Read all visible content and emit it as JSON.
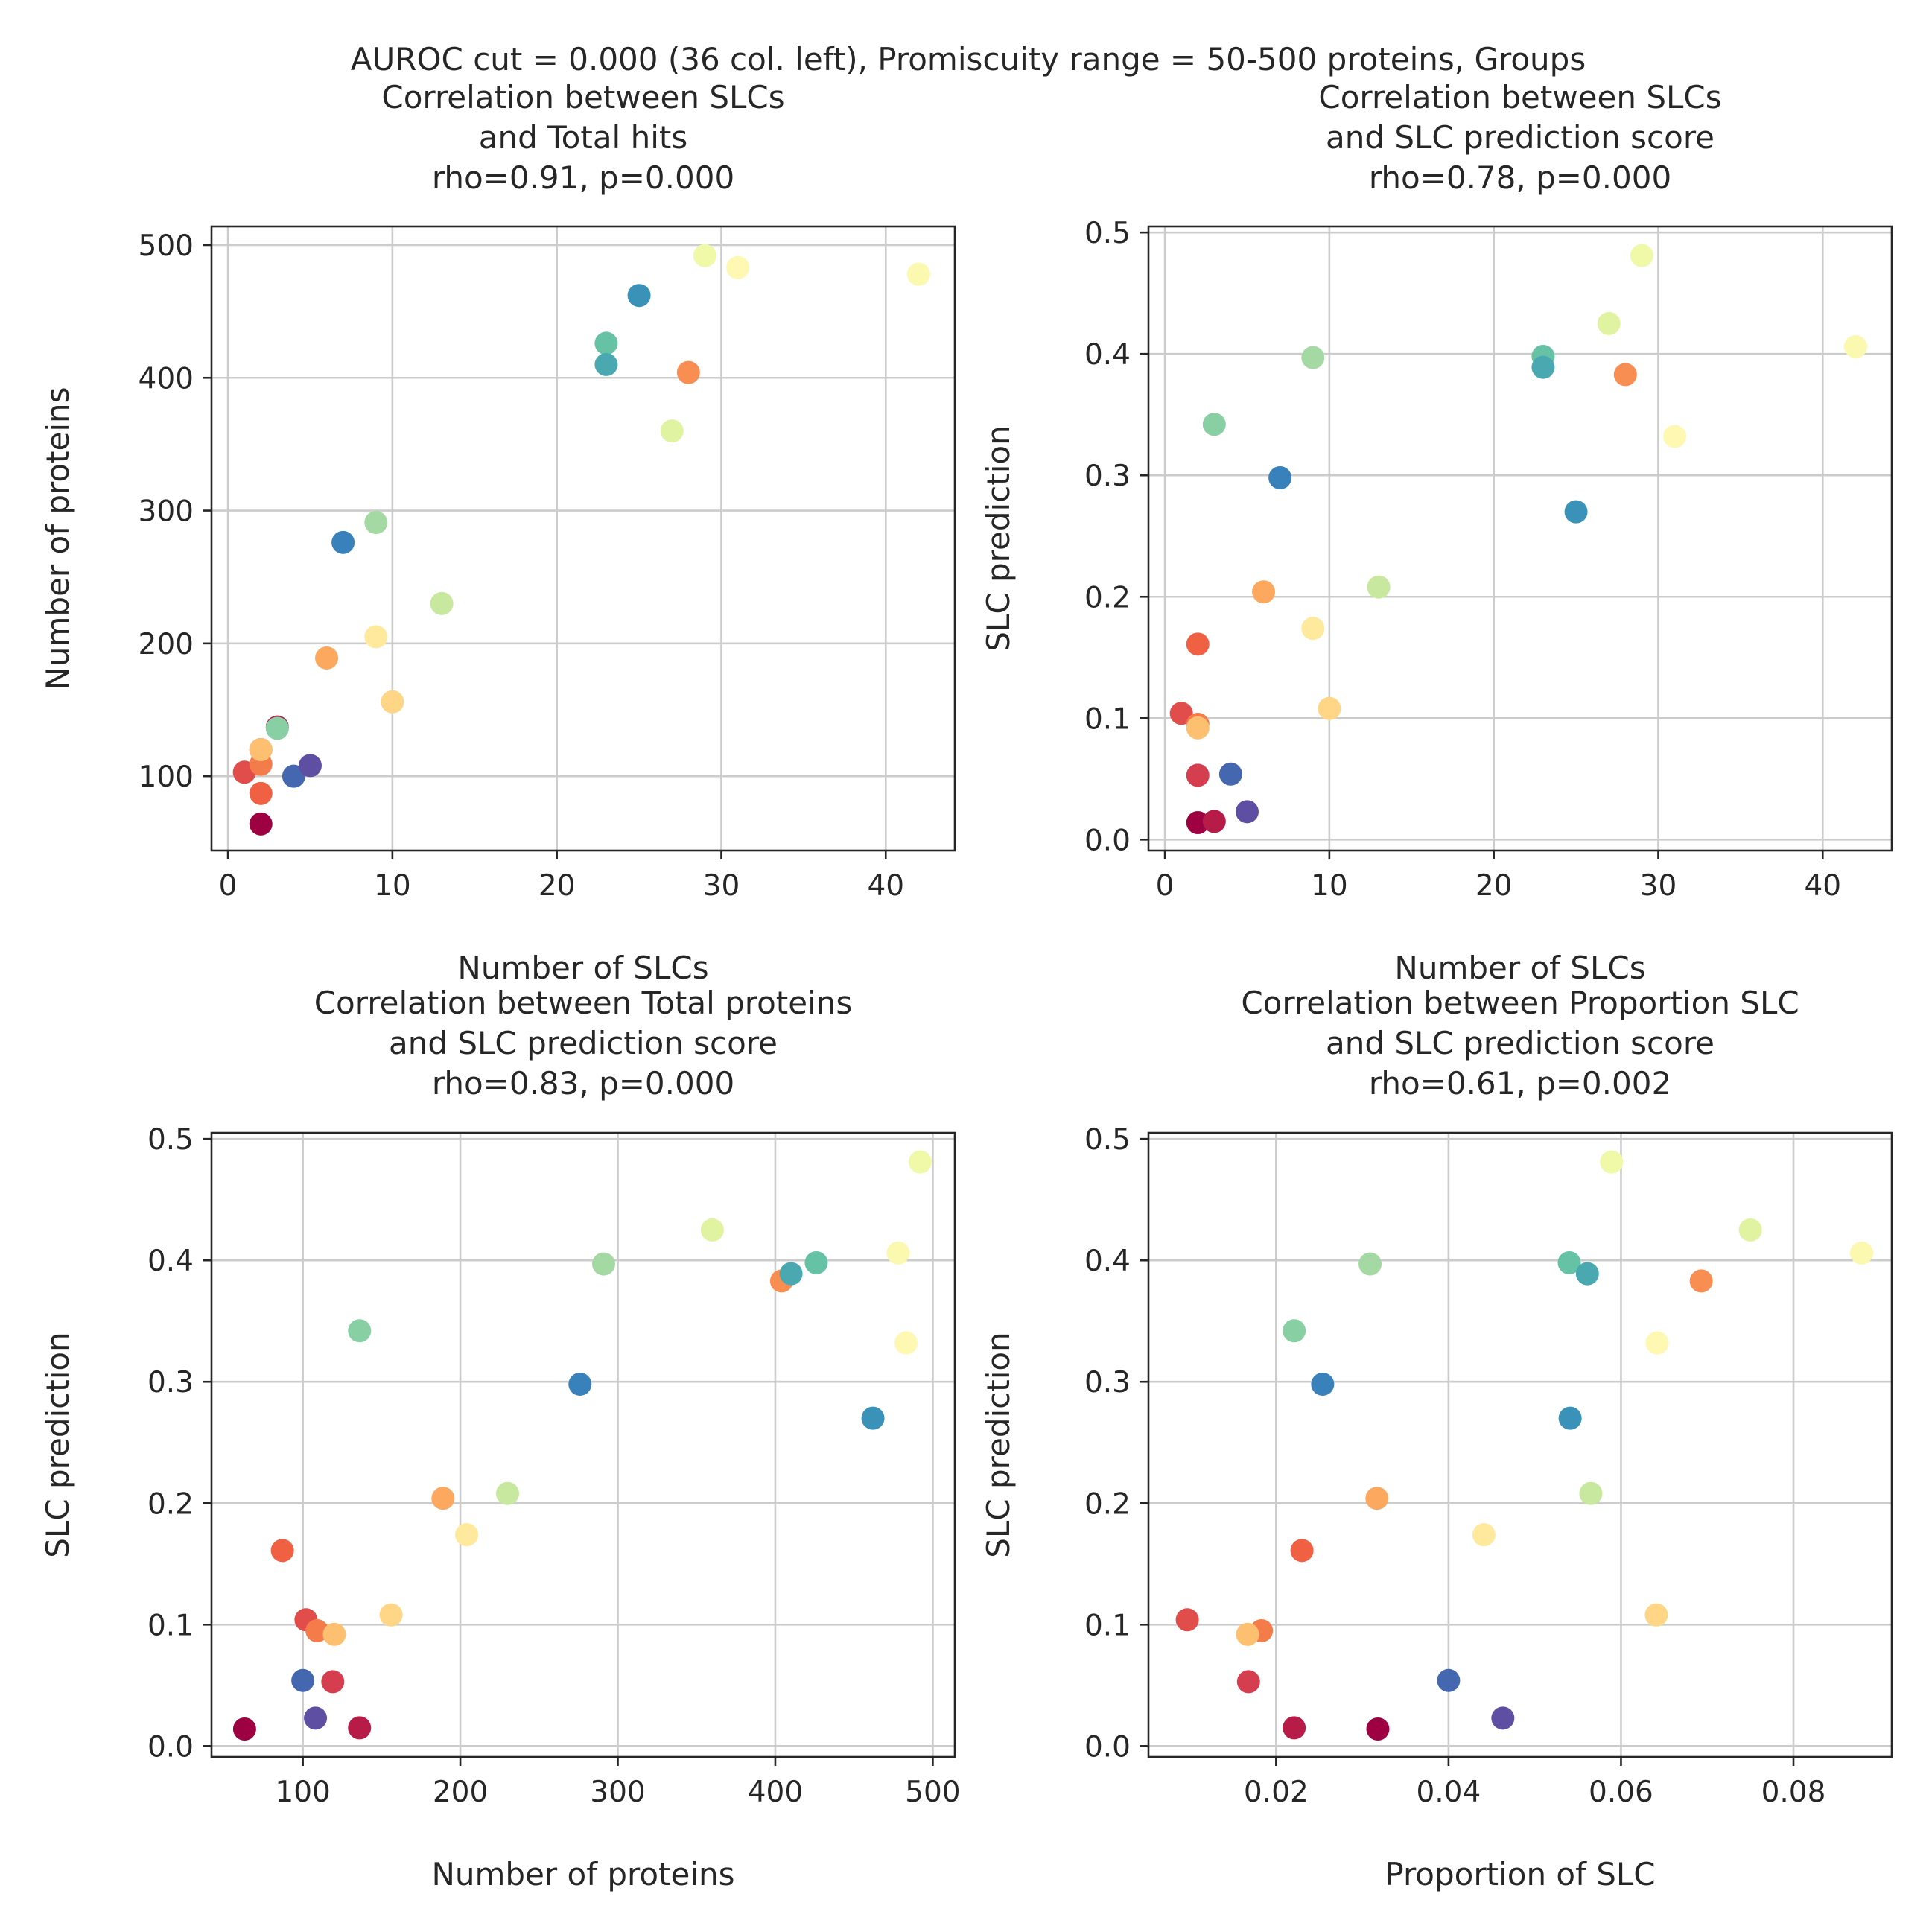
{
  "suptitle": "AUROC cut = 0.000 (36 col. left), Promiscuity range = 50-500 proteins, Groups",
  "chart_data": [
    {
      "type": "scatter",
      "title": [
        "Correlation between SLCs",
        "and Total hits",
        "rho=0.91, p=0.000"
      ],
      "xlabel": "Number of SLCs",
      "ylabel": "Number of proteins",
      "xlim": [
        -1,
        44.2
      ],
      "ylim": [
        44,
        514
      ],
      "xticks": [
        0,
        10,
        20,
        30,
        40
      ],
      "xtick_labels": [
        "0",
        "10",
        "20",
        "30",
        "40"
      ],
      "yticks": [
        100,
        200,
        300,
        400,
        500
      ],
      "ytick_labels": [
        "100",
        "200",
        "300",
        "400",
        "500"
      ],
      "grid": true,
      "points": [
        {
          "x": 2,
          "y": 64,
          "color": "#9e0142"
        },
        {
          "x": 3,
          "y": 137,
          "color": "#b71c48"
        },
        {
          "x": 2,
          "y": 120,
          "color": "#d53e4f"
        },
        {
          "x": 1,
          "y": 103,
          "color": "#e04d4a"
        },
        {
          "x": 2,
          "y": 87,
          "color": "#f06143"
        },
        {
          "x": 2,
          "y": 109,
          "color": "#f47b4a"
        },
        {
          "x": 28,
          "y": 404,
          "color": "#f98e52"
        },
        {
          "x": 6,
          "y": 189,
          "color": "#fca85e"
        },
        {
          "x": 2,
          "y": 120,
          "color": "#fdc070"
        },
        {
          "x": 10,
          "y": 156,
          "color": "#fed686"
        },
        {
          "x": 9,
          "y": 205,
          "color": "#fee99d"
        },
        {
          "x": 31,
          "y": 483,
          "color": "#fff8b3"
        },
        {
          "x": 42,
          "y": 478,
          "color": "#fbf8b0"
        },
        {
          "x": 29,
          "y": 492,
          "color": "#f0f9a7"
        },
        {
          "x": 27,
          "y": 360,
          "color": "#e0f3a1"
        },
        {
          "x": 13,
          "y": 230,
          "color": "#c7e89e"
        },
        {
          "x": 9,
          "y": 291,
          "color": "#a5d9a4"
        },
        {
          "x": 3,
          "y": 136,
          "color": "#88cfa4"
        },
        {
          "x": 23,
          "y": 426,
          "color": "#66c2a5"
        },
        {
          "x": 23,
          "y": 410,
          "color": "#4aa9b0"
        },
        {
          "x": 25,
          "y": 462,
          "color": "#3b92b8"
        },
        {
          "x": 7,
          "y": 276,
          "color": "#3881ba"
        },
        {
          "x": 4,
          "y": 100,
          "color": "#4467b0"
        },
        {
          "x": 5,
          "y": 108,
          "color": "#5e4fa2"
        }
      ]
    },
    {
      "type": "scatter",
      "title": [
        "Correlation between SLCs",
        "and SLC prediction score",
        "rho=0.78, p=0.000"
      ],
      "xlabel": "Number of SLCs",
      "ylabel": "SLC prediction",
      "xlim": [
        -1,
        44.2
      ],
      "ylim": [
        -0.009,
        0.505
      ],
      "xticks": [
        0,
        10,
        20,
        30,
        40
      ],
      "xtick_labels": [
        "0",
        "10",
        "20",
        "30",
        "40"
      ],
      "yticks": [
        0.0,
        0.1,
        0.2,
        0.3,
        0.4,
        0.5
      ],
      "ytick_labels": [
        "0.0",
        "0.1",
        "0.2",
        "0.3",
        "0.4",
        "0.5"
      ],
      "grid": true,
      "points": [
        {
          "x": 2,
          "y": 0.014,
          "color": "#9e0142"
        },
        {
          "x": 3,
          "y": 0.015,
          "color": "#b71c48"
        },
        {
          "x": 2,
          "y": 0.053,
          "color": "#d53e4f"
        },
        {
          "x": 1,
          "y": 0.104,
          "color": "#e04d4a"
        },
        {
          "x": 2,
          "y": 0.161,
          "color": "#f06143"
        },
        {
          "x": 2,
          "y": 0.095,
          "color": "#f47b4a"
        },
        {
          "x": 28,
          "y": 0.383,
          "color": "#f98e52"
        },
        {
          "x": 6,
          "y": 0.204,
          "color": "#fca85e"
        },
        {
          "x": 2,
          "y": 0.092,
          "color": "#fdc070"
        },
        {
          "x": 10,
          "y": 0.108,
          "color": "#fed686"
        },
        {
          "x": 9,
          "y": 0.174,
          "color": "#fee99d"
        },
        {
          "x": 31,
          "y": 0.332,
          "color": "#fff8b3"
        },
        {
          "x": 42,
          "y": 0.406,
          "color": "#fbf8b0"
        },
        {
          "x": 29,
          "y": 0.481,
          "color": "#f0f9a7"
        },
        {
          "x": 27,
          "y": 0.425,
          "color": "#e0f3a1"
        },
        {
          "x": 13,
          "y": 0.208,
          "color": "#c7e89e"
        },
        {
          "x": 9,
          "y": 0.397,
          "color": "#a5d9a4"
        },
        {
          "x": 3,
          "y": 0.342,
          "color": "#88cfa4"
        },
        {
          "x": 23,
          "y": 0.398,
          "color": "#66c2a5"
        },
        {
          "x": 23,
          "y": 0.389,
          "color": "#4aa9b0"
        },
        {
          "x": 25,
          "y": 0.27,
          "color": "#3b92b8"
        },
        {
          "x": 7,
          "y": 0.298,
          "color": "#3881ba"
        },
        {
          "x": 4,
          "y": 0.054,
          "color": "#4467b0"
        },
        {
          "x": 5,
          "y": 0.023,
          "color": "#5e4fa2"
        }
      ]
    },
    {
      "type": "scatter",
      "title": [
        "Correlation between Total proteins",
        "and SLC prediction score",
        "rho=0.83, p=0.000"
      ],
      "xlabel": "Number of proteins",
      "ylabel": "SLC prediction",
      "xlim": [
        42,
        514
      ],
      "ylim": [
        -0.009,
        0.505
      ],
      "xticks": [
        100,
        200,
        300,
        400,
        500
      ],
      "xtick_labels": [
        "100",
        "200",
        "300",
        "400",
        "500"
      ],
      "yticks": [
        0.0,
        0.1,
        0.2,
        0.3,
        0.4,
        0.5
      ],
      "ytick_labels": [
        "0.0",
        "0.1",
        "0.2",
        "0.3",
        "0.4",
        "0.5"
      ],
      "grid": true,
      "points": [
        {
          "x": 63,
          "y": 0.014,
          "color": "#9e0142"
        },
        {
          "x": 136,
          "y": 0.015,
          "color": "#b71c48"
        },
        {
          "x": 119,
          "y": 0.053,
          "color": "#d53e4f"
        },
        {
          "x": 102,
          "y": 0.104,
          "color": "#e04d4a"
        },
        {
          "x": 87,
          "y": 0.161,
          "color": "#f06143"
        },
        {
          "x": 109,
          "y": 0.095,
          "color": "#f47b4a"
        },
        {
          "x": 404,
          "y": 0.383,
          "color": "#f98e52"
        },
        {
          "x": 189,
          "y": 0.204,
          "color": "#fca85e"
        },
        {
          "x": 120,
          "y": 0.092,
          "color": "#fdc070"
        },
        {
          "x": 156,
          "y": 0.108,
          "color": "#fed686"
        },
        {
          "x": 204,
          "y": 0.174,
          "color": "#fee99d"
        },
        {
          "x": 483,
          "y": 0.332,
          "color": "#fff8b3"
        },
        {
          "x": 478,
          "y": 0.406,
          "color": "#fbf8b0"
        },
        {
          "x": 492,
          "y": 0.481,
          "color": "#f0f9a7"
        },
        {
          "x": 360,
          "y": 0.425,
          "color": "#e0f3a1"
        },
        {
          "x": 230,
          "y": 0.208,
          "color": "#c7e89e"
        },
        {
          "x": 291,
          "y": 0.397,
          "color": "#a5d9a4"
        },
        {
          "x": 136,
          "y": 0.342,
          "color": "#88cfa4"
        },
        {
          "x": 426,
          "y": 0.398,
          "color": "#66c2a5"
        },
        {
          "x": 410,
          "y": 0.389,
          "color": "#4aa9b0"
        },
        {
          "x": 462,
          "y": 0.27,
          "color": "#3b92b8"
        },
        {
          "x": 276,
          "y": 0.298,
          "color": "#3881ba"
        },
        {
          "x": 100,
          "y": 0.054,
          "color": "#4467b0"
        },
        {
          "x": 108,
          "y": 0.023,
          "color": "#5e4fa2"
        }
      ]
    },
    {
      "type": "scatter",
      "title": [
        "Correlation between Proportion SLC",
        "and SLC prediction score",
        "rho=0.61, p=0.002"
      ],
      "xlabel": "Proportion of SLC",
      "ylabel": "SLC prediction",
      "xlim": [
        0.0052,
        0.0914
      ],
      "ylim": [
        -0.009,
        0.505
      ],
      "xticks": [
        0.02,
        0.04,
        0.06,
        0.08
      ],
      "xtick_labels": [
        "0.02",
        "0.04",
        "0.06",
        "0.08"
      ],
      "yticks": [
        0.0,
        0.1,
        0.2,
        0.3,
        0.4,
        0.5
      ],
      "ytick_labels": [
        "0.0",
        "0.1",
        "0.2",
        "0.3",
        "0.4",
        "0.5"
      ],
      "grid": true,
      "points": [
        {
          "x": 0.0318,
          "y": 0.014,
          "color": "#9e0142"
        },
        {
          "x": 0.0221,
          "y": 0.015,
          "color": "#b71c48"
        },
        {
          "x": 0.0168,
          "y": 0.053,
          "color": "#d53e4f"
        },
        {
          "x": 0.0097,
          "y": 0.104,
          "color": "#e04d4a"
        },
        {
          "x": 0.023,
          "y": 0.161,
          "color": "#f06143"
        },
        {
          "x": 0.0183,
          "y": 0.095,
          "color": "#f47b4a"
        },
        {
          "x": 0.0693,
          "y": 0.383,
          "color": "#f98e52"
        },
        {
          "x": 0.0317,
          "y": 0.204,
          "color": "#fca85e"
        },
        {
          "x": 0.0167,
          "y": 0.092,
          "color": "#fdc070"
        },
        {
          "x": 0.0641,
          "y": 0.108,
          "color": "#fed686"
        },
        {
          "x": 0.0441,
          "y": 0.174,
          "color": "#fee99d"
        },
        {
          "x": 0.0642,
          "y": 0.332,
          "color": "#fff8b3"
        },
        {
          "x": 0.0879,
          "y": 0.406,
          "color": "#fbf8b0"
        },
        {
          "x": 0.0589,
          "y": 0.481,
          "color": "#f0f9a7"
        },
        {
          "x": 0.075,
          "y": 0.425,
          "color": "#e0f3a1"
        },
        {
          "x": 0.0565,
          "y": 0.208,
          "color": "#c7e89e"
        },
        {
          "x": 0.0309,
          "y": 0.397,
          "color": "#a5d9a4"
        },
        {
          "x": 0.0221,
          "y": 0.342,
          "color": "#88cfa4"
        },
        {
          "x": 0.054,
          "y": 0.398,
          "color": "#66c2a5"
        },
        {
          "x": 0.0561,
          "y": 0.389,
          "color": "#4aa9b0"
        },
        {
          "x": 0.0541,
          "y": 0.27,
          "color": "#3b92b8"
        },
        {
          "x": 0.0254,
          "y": 0.298,
          "color": "#3881ba"
        },
        {
          "x": 0.04,
          "y": 0.054,
          "color": "#4467b0"
        },
        {
          "x": 0.0463,
          "y": 0.023,
          "color": "#5e4fa2"
        }
      ]
    }
  ]
}
